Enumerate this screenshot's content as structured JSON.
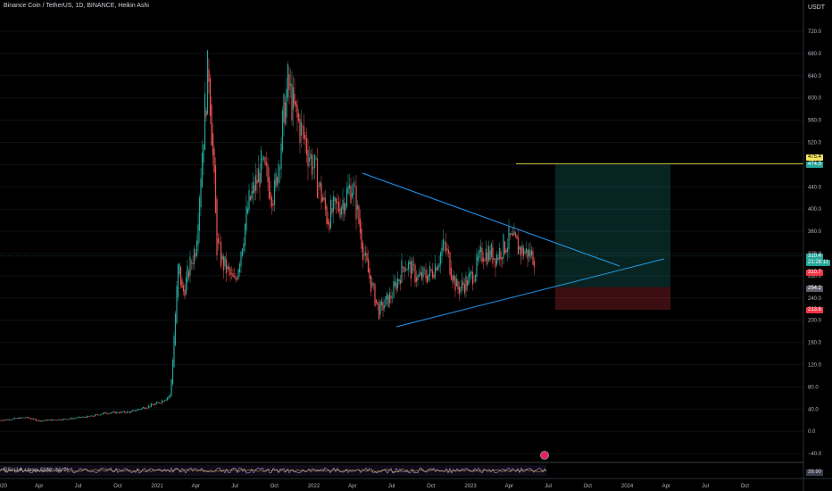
{
  "header": {
    "title": "Binance Coin / TetherUS, 1D, BINANCE, Heikin Ashi",
    "currency": "USDT"
  },
  "price_axis": {
    "ticks": [
      "720.0",
      "680.0",
      "640.0",
      "600.0",
      "560.0",
      "520.0",
      "480.0",
      "440.0",
      "400.0",
      "360.0",
      "320.0",
      "280.0",
      "240.0",
      "200.0",
      "160.0",
      "120.0",
      "80.0",
      "40.0",
      "0.0",
      "−40.0"
    ]
  },
  "time_axis": {
    "ticks": [
      "2020",
      "Apr",
      "Jul",
      "Oct",
      "2021",
      "Apr",
      "Jul",
      "Oct",
      "2022",
      "Apr",
      "Jul",
      "Oct",
      "2023",
      "Apr",
      "Jul",
      "Oct",
      "2024",
      "Apr",
      "Jul",
      "Oct"
    ]
  },
  "price_badges": {
    "target_top": {
      "text": "475.4",
      "bg": "#f5e663",
      "fg": "#000000"
    },
    "target": {
      "text": "474.9",
      "bg": "#26a69a",
      "fg": "#ffffff"
    },
    "current": {
      "text": "310.4",
      "bg": "#26a69a",
      "fg": "#ffffff"
    },
    "countdown": {
      "text": "21:28:11",
      "bg": "#26a69a",
      "fg": "#ffffff"
    },
    "last": {
      "text": "310.7",
      "bg": "#f23645",
      "fg": "#ffffff"
    },
    "entry": {
      "text": "254.2",
      "bg": "#5d606b",
      "fg": "#ffffff"
    },
    "stop": {
      "text": "213.6",
      "bg": "#f23645",
      "fg": "#ffffff"
    }
  },
  "rsi": {
    "label": "RSI (14, close, SMA, 14, 2)",
    "value": "39.90"
  },
  "colors": {
    "up": "#26a69a",
    "down": "#ef5350",
    "triangle": "#2196f3",
    "target_line": "#c9c93a"
  },
  "chart_data": {
    "type": "candlestick",
    "ylim": [
      -55,
      745
    ],
    "price_levels": {
      "target": 474.9,
      "current": 310.4,
      "entry": 254.2,
      "stop": 213.6
    },
    "series": [
      {
        "points": [
          [
            "2020-01",
            15
          ],
          [
            "2020-03",
            20
          ],
          [
            "2020-04",
            14
          ],
          [
            "2020-06",
            17
          ],
          [
            "2020-08",
            22
          ],
          [
            "2020-09",
            28
          ],
          [
            "2020-11",
            30
          ],
          [
            "2020-12",
            38
          ],
          [
            "2021-01",
            45
          ],
          [
            "2021-02",
            60
          ],
          [
            "2021-02-20",
            300
          ],
          [
            "2021-03",
            240
          ],
          [
            "2021-04",
            330
          ],
          [
            "2021-04-20",
            550
          ],
          [
            "2021-05",
            660
          ],
          [
            "2021-05-20",
            330
          ],
          [
            "2021-06",
            300
          ],
          [
            "2021-07",
            260
          ],
          [
            "2021-08",
            400
          ],
          [
            "2021-09",
            470
          ],
          [
            "2021-10",
            420
          ],
          [
            "2021-11",
            620
          ],
          [
            "2021-11-20",
            560
          ],
          [
            "2021-12",
            540
          ],
          [
            "2022-01",
            470
          ],
          [
            "2022-02",
            380
          ],
          [
            "2022-03",
            400
          ],
          [
            "2022-04",
            440
          ],
          [
            "2022-05",
            300
          ],
          [
            "2022-06",
            210
          ],
          [
            "2022-07",
            240
          ],
          [
            "2022-08",
            300
          ],
          [
            "2022-09",
            270
          ],
          [
            "2022-10",
            280
          ],
          [
            "2022-11",
            330
          ],
          [
            "2022-12",
            250
          ],
          [
            "2023-01",
            270
          ],
          [
            "2023-02",
            320
          ],
          [
            "2023-03",
            310
          ],
          [
            "2023-04",
            340
          ],
          [
            "2023-05",
            320
          ],
          [
            "2023-06",
            310
          ]
        ]
      }
    ]
  }
}
